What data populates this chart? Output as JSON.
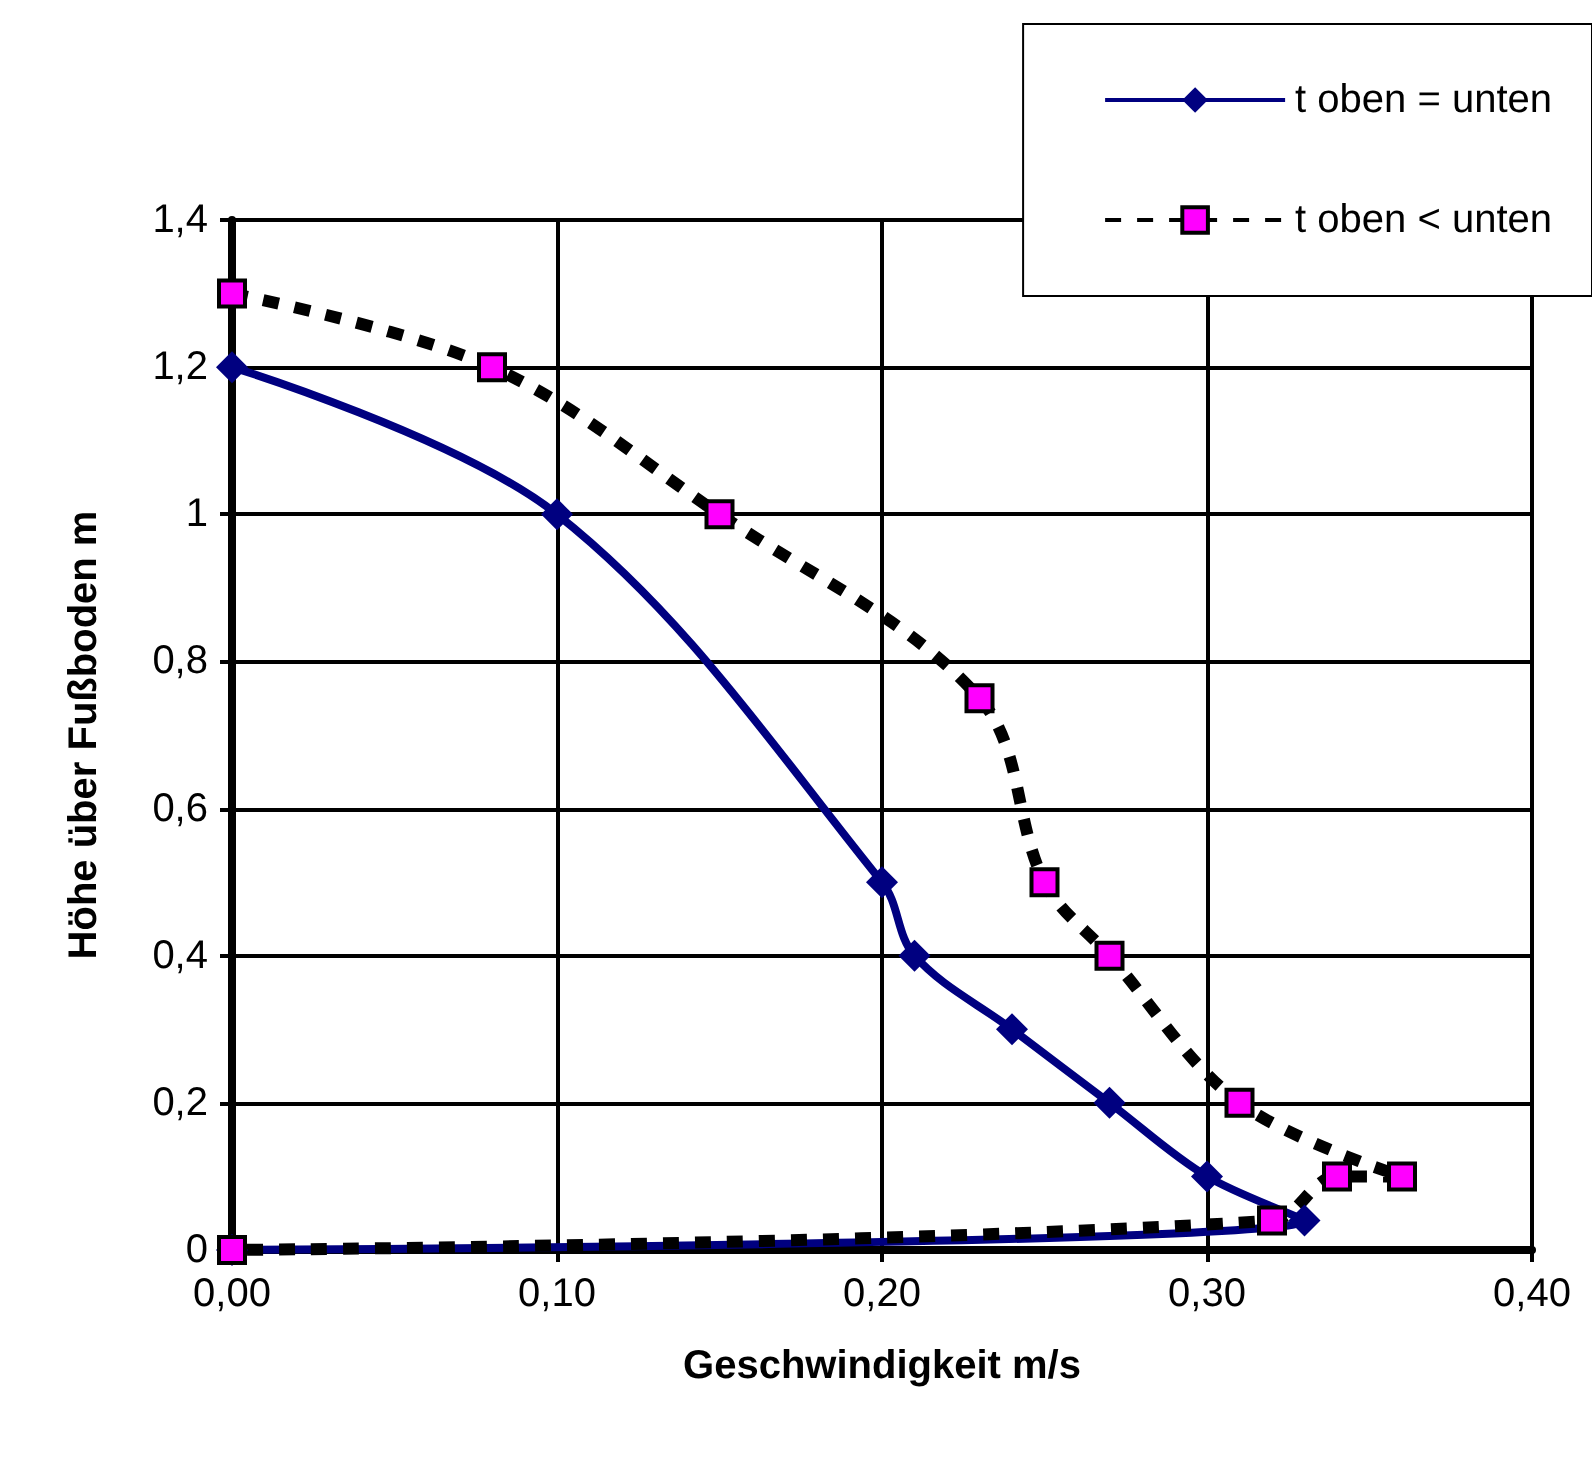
{
  "chart_data": {
    "type": "line",
    "xlabel": "Geschwindigkeit m/s",
    "ylabel": "Höhe über Fußboden m",
    "xlim": [
      0,
      0.4
    ],
    "xticks": [
      {
        "value": 0,
        "label": "0,00"
      },
      {
        "value": 0.1,
        "label": "0,10"
      },
      {
        "value": 0.2,
        "label": "0,20"
      },
      {
        "value": 0.3,
        "label": "0,30"
      },
      {
        "value": 0.4,
        "label": "0,40"
      }
    ],
    "ylim": [
      0,
      1.4
    ],
    "yticks": [
      0,
      {
        "value": 0.2,
        "label": "0,2"
      },
      {
        "value": 0.4,
        "label": "0,4"
      },
      {
        "value": 0.6,
        "label": "0,6"
      },
      {
        "value": 0.8,
        "label": "0,8"
      },
      1,
      {
        "value": 1.2,
        "label": "1,2"
      },
      {
        "value": 1.4,
        "label": "1,4"
      }
    ],
    "grid": true,
    "legend": "top right",
    "series": [
      {
        "name": "t oben = unten",
        "color": "#000080",
        "marker": "diamond",
        "line_style": "solid",
        "x": [
          0,
          0.1,
          0.2,
          0.21,
          0.24,
          0.27,
          0.3,
          0.33,
          0
        ],
        "values": [
          1.2,
          1.0,
          0.5,
          0.4,
          0.3,
          0.2,
          0.1,
          0.04,
          0
        ]
      },
      {
        "name": "t oben < unten",
        "color": "#ff00ff",
        "marker": "square",
        "line_style": "dashed",
        "x": [
          0,
          0.08,
          0.15,
          0.23,
          0.25,
          0.27,
          0.31,
          0.36,
          0.34,
          0.32,
          0
        ],
        "values": [
          1.3,
          1.2,
          1.0,
          0.75,
          0.5,
          0.4,
          0.2,
          0.1,
          0.1,
          0.04,
          0
        ]
      }
    ]
  }
}
